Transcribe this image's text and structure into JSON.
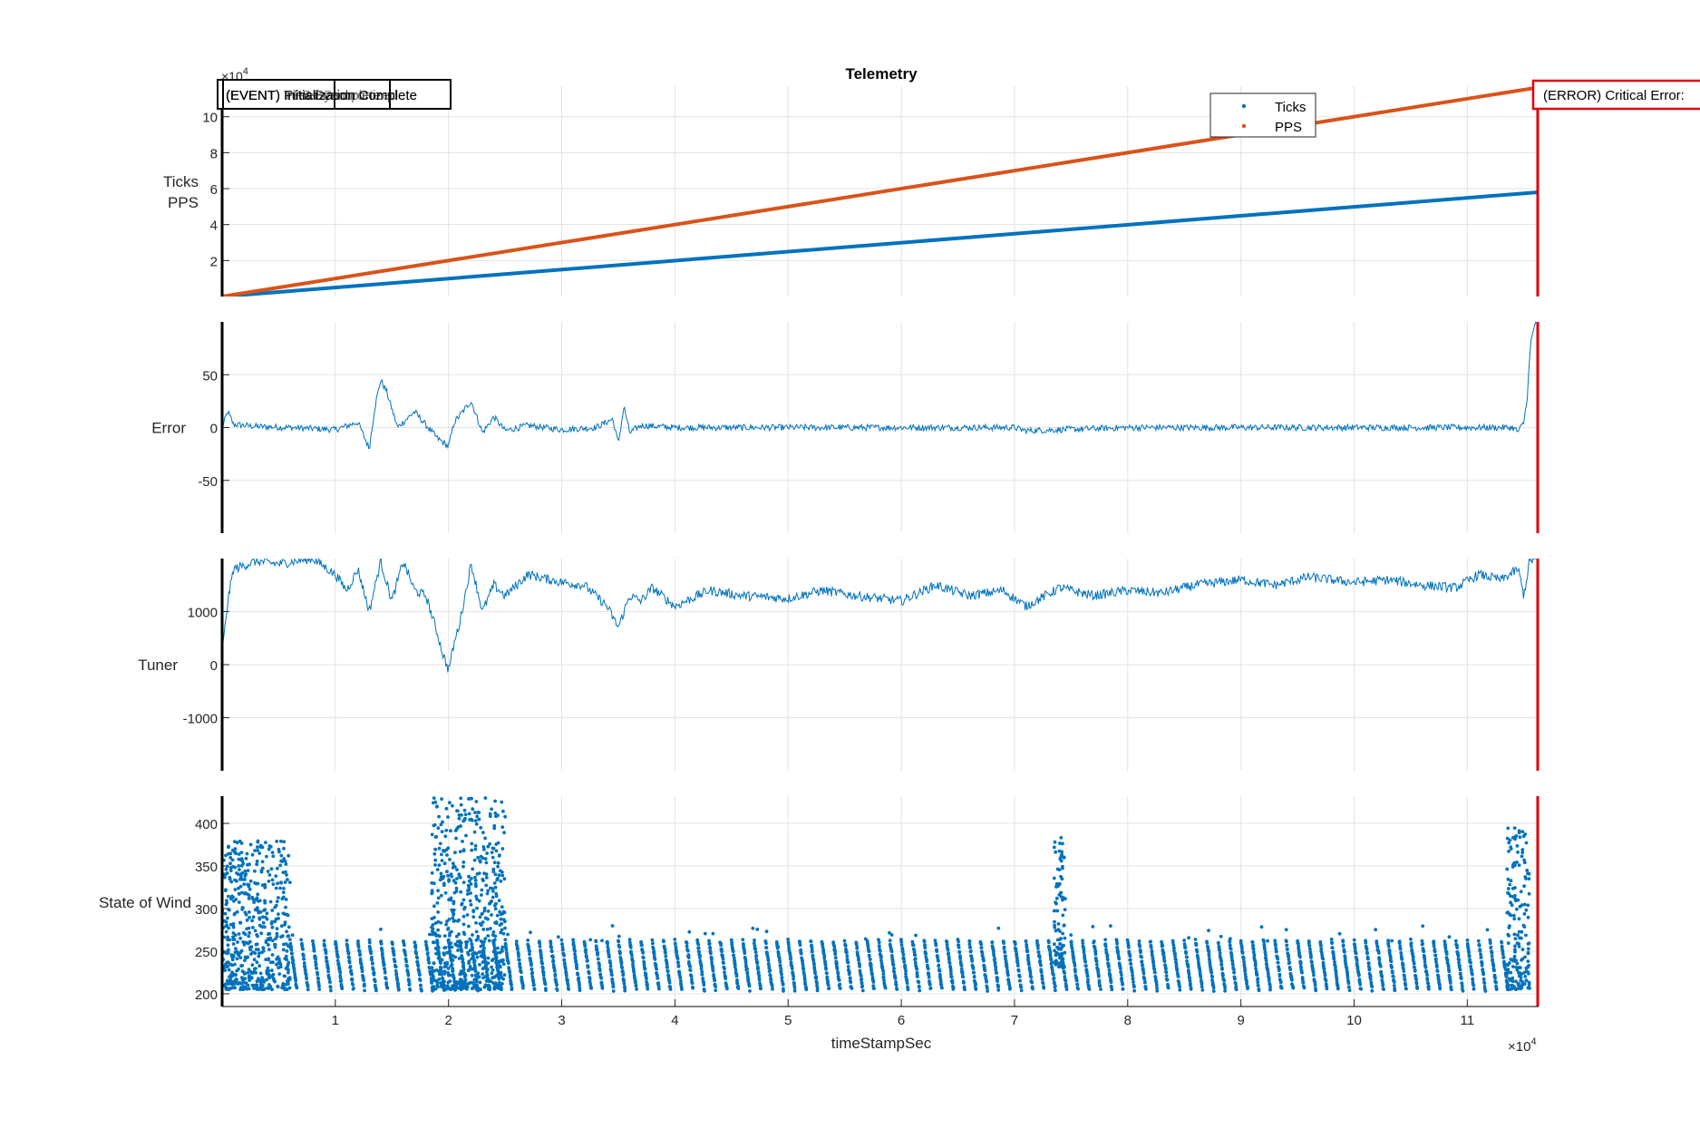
{
  "chart_data": {
    "type": "line",
    "title": "Telemetry",
    "xlabel": "timeStampSec",
    "x_exponent": "×10",
    "x_exponent_power": "4",
    "x_ticks": [
      1,
      2,
      3,
      4,
      5,
      6,
      7,
      8,
      9,
      10,
      11
    ],
    "xlim": [
      0,
      11.63
    ],
    "grid": true,
    "colors": {
      "blue": "#0072BD",
      "orange": "#D95319",
      "red": "#E0000A"
    },
    "panels": [
      {
        "id": "ticks-pps",
        "ylabel_lines": [
          "Ticks",
          "PPS"
        ],
        "y_exponent": "×10",
        "y_exponent_power": "4",
        "ylim": [
          0,
          11.7
        ],
        "yticks": [
          2,
          4,
          6,
          8,
          10
        ],
        "legend": {
          "placement": "top-right",
          "entries": [
            "Ticks",
            "PPS"
          ]
        },
        "series": [
          {
            "name": "Ticks",
            "color": "#0072BD",
            "x": [
              0,
              11.63
            ],
            "y": [
              0,
              5.8
            ]
          },
          {
            "name": "PPS",
            "color": "#D95319",
            "x": [
              0,
              11.63
            ],
            "y": [
              0,
              11.63
            ]
          }
        ],
        "event_annotations": [
          "(EVENT) PPS Synchronized",
          "(EVENT) Tuner Complete",
          "(EVENT) First Event",
          "(EVENT) Initialization Complete"
        ],
        "event_label_visible": "(EVENT) Initialization Complete",
        "error_annotation": "(ERROR) Critical Error:"
      },
      {
        "id": "error",
        "ylabel": "Error",
        "ylim": [
          -100,
          100
        ],
        "yticks": [
          -50,
          0,
          50
        ],
        "series": [
          {
            "name": "Error",
            "color": "#0072BD",
            "x": [
              0,
              0.05,
              0.1,
              0.3,
              0.6,
              1.0,
              1.2,
              1.3,
              1.35,
              1.4,
              1.45,
              1.55,
              1.7,
              1.9,
              2.0,
              2.05,
              2.2,
              2.3,
              2.4,
              2.5,
              2.7,
              3.0,
              3.3,
              3.45,
              3.5,
              3.55,
              3.6,
              3.7,
              4.0,
              5.0,
              6.0,
              7.0,
              7.1,
              8.0,
              9.0,
              10.0,
              11.0,
              11.4,
              11.45,
              11.5,
              11.53,
              11.56,
              11.6
            ],
            "y": [
              0,
              15,
              3,
              1,
              0,
              -2,
              5,
              -20,
              20,
              45,
              35,
              0,
              15,
              -10,
              -18,
              5,
              25,
              -5,
              10,
              -3,
              2,
              -2,
              0,
              8,
              -15,
              20,
              -5,
              2,
              0,
              0,
              0,
              0,
              -3,
              0,
              0,
              0,
              0,
              0,
              -4,
              5,
              30,
              80,
              100
            ]
          }
        ]
      },
      {
        "id": "tuner",
        "ylabel": "Tuner",
        "ylim": [
          -2000,
          2000
        ],
        "yticks": [
          -1000,
          0,
          1000
        ],
        "series": [
          {
            "name": "Tuner",
            "color": "#0072BD",
            "x": [
              0,
              0.05,
              0.1,
              0.3,
              0.5,
              0.8,
              1.0,
              1.1,
              1.2,
              1.3,
              1.4,
              1.5,
              1.6,
              1.7,
              1.8,
              1.9,
              1.95,
              2.0,
              2.05,
              2.1,
              2.2,
              2.3,
              2.4,
              2.5,
              2.7,
              3.0,
              3.2,
              3.4,
              3.5,
              3.6,
              3.7,
              3.8,
              4.0,
              4.3,
              4.6,
              5.0,
              5.3,
              5.6,
              6.0,
              6.3,
              6.6,
              6.9,
              7.1,
              7.4,
              7.7,
              8.0,
              8.3,
              8.6,
              9.0,
              9.3,
              9.6,
              10.0,
              10.3,
              10.6,
              10.9,
              11.1,
              11.3,
              11.45,
              11.5,
              11.55,
              11.63
            ],
            "y": [
              200,
              1200,
              1800,
              1950,
              1900,
              2000,
              1700,
              1400,
              1800,
              1000,
              1950,
              1200,
              1950,
              1400,
              1300,
              600,
              200,
              -100,
              400,
              800,
              1900,
              1000,
              1500,
              1300,
              1700,
              1550,
              1500,
              1100,
              700,
              1300,
              1200,
              1450,
              1100,
              1400,
              1300,
              1250,
              1400,
              1300,
              1200,
              1500,
              1300,
              1400,
              1100,
              1450,
              1300,
              1400,
              1350,
              1500,
              1600,
              1500,
              1650,
              1550,
              1600,
              1500,
              1450,
              1700,
              1600,
              1800,
              1300,
              1950,
              2000
            ]
          }
        ]
      },
      {
        "id": "state-of-wind",
        "ylabel": "State of Wind",
        "ylim": [
          185,
          432
        ],
        "yticks": [
          200,
          250,
          300,
          350,
          400
        ],
        "series": [
          {
            "name": "State of Wind",
            "color": "#0072BD",
            "marker": "dot",
            "clusters": [
              {
                "x": [
                  0.0,
                  0.6
                ],
                "y": [
                  205,
                  380
                ]
              },
              {
                "x": [
                  1.85,
                  2.5
                ],
                "y": [
                  205,
                  430
                ]
              },
              {
                "x": [
                  7.35,
                  7.45
                ],
                "y": [
                  230,
                  385
                ]
              },
              {
                "x": [
                  11.35,
                  11.55
                ],
                "y": [
                  205,
                  395
                ]
              }
            ],
            "sawtooth": {
              "x": [
                0.6,
                11.35
              ],
              "y": [
                205,
                262
              ],
              "period": 0.1
            }
          }
        ]
      }
    ]
  }
}
